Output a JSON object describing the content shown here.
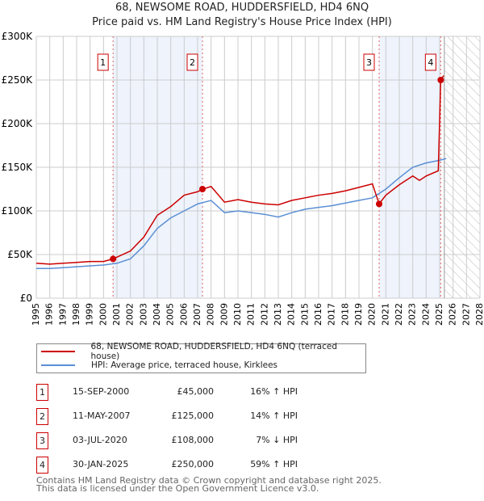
{
  "chart_data": {
    "type": "line",
    "title": "68, NEWSOME ROAD, HUDDERSFIELD, HD4 6NQ",
    "subtitle": "Price paid vs. HM Land Registry's House Price Index (HPI)",
    "xlim": [
      1995,
      2028
    ],
    "ylim": [
      0,
      300000
    ],
    "x_ticks": [
      "1995",
      "1996",
      "1997",
      "1998",
      "1999",
      "2000",
      "2001",
      "2002",
      "2003",
      "2004",
      "2005",
      "2006",
      "2007",
      "2008",
      "2009",
      "2010",
      "2011",
      "2012",
      "2013",
      "2014",
      "2015",
      "2016",
      "2017",
      "2018",
      "2019",
      "2020",
      "2021",
      "2022",
      "2023",
      "2024",
      "2025",
      "2026",
      "2027",
      "2028"
    ],
    "y_ticks": [
      {
        "v": 0,
        "label": "£0"
      },
      {
        "v": 50000,
        "label": "£50K"
      },
      {
        "v": 100000,
        "label": "£100K"
      },
      {
        "v": 150000,
        "label": "£150K"
      },
      {
        "v": 200000,
        "label": "£200K"
      },
      {
        "v": 250000,
        "label": "£250K"
      },
      {
        "v": 300000,
        "label": "£300K"
      }
    ],
    "grid": true,
    "forecast_start": 2025.35,
    "series": [
      {
        "name": "68, NEWSOME ROAD, HUDDERSFIELD, HD4 6NQ (terraced house)",
        "color": "#cc0000",
        "x": [
          1995,
          1996,
          1997,
          1998,
          1999,
          2000,
          2000.7,
          2001,
          2002,
          2003,
          2004,
          2005,
          2006,
          2007,
          2007.4,
          2008,
          2009,
          2010,
          2011,
          2012,
          2013,
          2014,
          2015,
          2016,
          2017,
          2018,
          2019,
          2020,
          2020.5,
          2021,
          2022,
          2023,
          2023.5,
          2024,
          2024.9,
          2025.08,
          2025.3
        ],
        "y": [
          40000,
          39000,
          40000,
          41000,
          42000,
          42000,
          45000,
          47000,
          54000,
          70000,
          95000,
          105000,
          118000,
          122000,
          125000,
          128000,
          110000,
          113000,
          110000,
          108000,
          107000,
          112000,
          115000,
          118000,
          120000,
          123000,
          127000,
          131000,
          108000,
          118000,
          130000,
          140000,
          135000,
          140000,
          146000,
          250000,
          255000
        ]
      },
      {
        "name": "HPI: Average price, terraced house, Kirklees",
        "color": "#5b8fd4",
        "x": [
          1995,
          1996,
          1997,
          1998,
          1999,
          2000,
          2001,
          2002,
          2003,
          2004,
          2005,
          2006,
          2007,
          2008,
          2009,
          2010,
          2011,
          2012,
          2013,
          2014,
          2015,
          2016,
          2017,
          2018,
          2019,
          2020,
          2021,
          2022,
          2023,
          2024,
          2025,
          2025.5
        ],
        "y": [
          34000,
          34000,
          35000,
          36000,
          37000,
          38000,
          40000,
          45000,
          60000,
          80000,
          92000,
          100000,
          108000,
          112000,
          98000,
          100000,
          98000,
          96000,
          93000,
          98000,
          102000,
          104000,
          106000,
          109000,
          112000,
          115000,
          125000,
          138000,
          150000,
          155000,
          158000,
          160000
        ]
      }
    ],
    "sales": [
      {
        "n": "1",
        "x": 2000.71,
        "price": 45000,
        "date": "15-SEP-2000",
        "price_label": "£45,000",
        "hpi": "16% ↑ HPI"
      },
      {
        "n": "2",
        "x": 2007.36,
        "price": 125000,
        "date": "11-MAY-2007",
        "price_label": "£125,000",
        "hpi": "14% ↑ HPI"
      },
      {
        "n": "3",
        "x": 2020.5,
        "price": 108000,
        "date": "03-JUL-2020",
        "price_label": "£108,000",
        "hpi": "7% ↓ HPI"
      },
      {
        "n": "4",
        "x": 2025.08,
        "price": 250000,
        "date": "30-JAN-2025",
        "price_label": "£250,000",
        "hpi": "59% ↑ HPI"
      }
    ],
    "shaded": [
      [
        2000.71,
        2007.36
      ],
      [
        2020.5,
        2025.08
      ]
    ]
  },
  "footer": {
    "line1": "Contains HM Land Registry data © Crown copyright and database right 2025.",
    "line2": "This data is licensed under the Open Government Licence v3.0."
  }
}
